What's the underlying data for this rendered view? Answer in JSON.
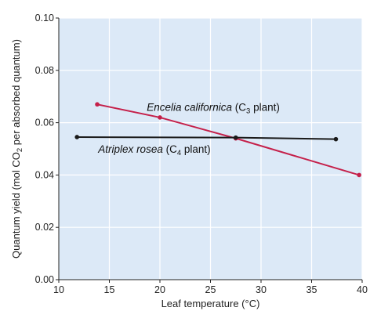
{
  "chart_data": {
    "type": "line",
    "xlabel": "Leaf temperature (°C)",
    "ylabel": {
      "prefix": "Quantum yield (mol CO",
      "subscript": "2",
      "suffix": " per absorbed quantum)"
    },
    "xlim": [
      10,
      40
    ],
    "ylim": [
      0,
      0.1
    ],
    "x_ticks": [
      10,
      15,
      20,
      25,
      30,
      35,
      40
    ],
    "y_ticks": [
      0.0,
      0.02,
      0.04,
      0.06,
      0.08,
      0.1
    ],
    "x_tick_labels": [
      "10",
      "15",
      "20",
      "25",
      "30",
      "35",
      "40"
    ],
    "y_tick_labels": [
      "0.00",
      "0.02",
      "0.04",
      "0.06",
      "0.08",
      "0.10"
    ],
    "grid": true,
    "colors": {
      "plot_background": "#dce9f7",
      "grid": "#ffffff",
      "series_c3": "#c5204a",
      "series_c4": "#1a1a1a"
    },
    "series": [
      {
        "name_italic": "Encelia californica",
        "name_suffix_prefix": " (C",
        "name_subscript": "3",
        "name_suffix": " plant)",
        "color": "#c5204a",
        "points": [
          [
            13.8,
            0.067
          ],
          [
            20.0,
            0.062
          ],
          [
            27.5,
            0.054
          ],
          [
            39.7,
            0.04
          ]
        ]
      },
      {
        "name_italic": "Atriplex rosea",
        "name_suffix_prefix": " (C",
        "name_subscript": "4",
        "name_suffix": " plant)",
        "color": "#1a1a1a",
        "points": [
          [
            11.8,
            0.0545
          ],
          [
            27.5,
            0.0543
          ],
          [
            37.4,
            0.0537
          ]
        ]
      }
    ]
  }
}
